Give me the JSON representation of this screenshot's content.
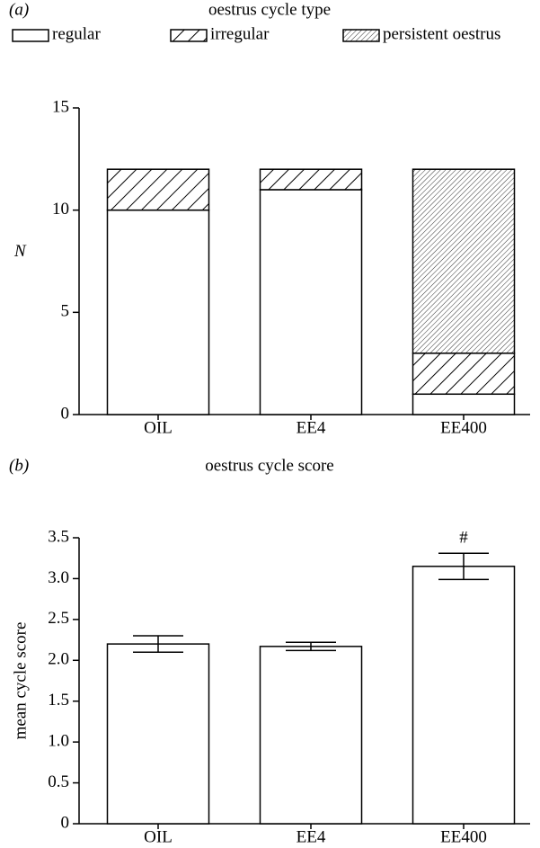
{
  "chart_data": [
    {
      "type": "stacked_bar",
      "panel": "(a)",
      "title": "oestrus cycle type",
      "ylabel": "N",
      "categories": [
        "OIL",
        "EE4",
        "EE400"
      ],
      "series": [
        {
          "name": "regular",
          "color": "#ffffff",
          "pattern": "none",
          "values": [
            10,
            11,
            1
          ]
        },
        {
          "name": "irregular",
          "color": "#ffffff",
          "pattern": "wide",
          "values": [
            2,
            1,
            2
          ]
        },
        {
          "name": "persistent oestrus",
          "color": "#ffffff",
          "pattern": "fine",
          "values": [
            0,
            0,
            9
          ]
        }
      ],
      "ylim": [
        0,
        15
      ],
      "yticks": [
        0,
        5,
        10,
        15
      ],
      "legend": "top"
    },
    {
      "type": "bar_error",
      "panel": "(b)",
      "title": "oestrus cycle score",
      "ylabel": "mean cycle score",
      "categories": [
        "OIL",
        "EE4",
        "EE400"
      ],
      "values": [
        2.2,
        2.17,
        3.15
      ],
      "errors": [
        0.1,
        0.05,
        0.16
      ],
      "color": "#ffffff",
      "annotations": [
        null,
        null,
        "#"
      ],
      "ylim": [
        0,
        3.5
      ],
      "yticks": [
        0,
        0.5,
        {
          "value": 1,
          "label": "1.0"
        },
        1.5,
        {
          "value": 2,
          "label": "2.0"
        },
        2.5,
        {
          "value": 3,
          "label": "3.0"
        },
        3.5
      ]
    }
  ]
}
